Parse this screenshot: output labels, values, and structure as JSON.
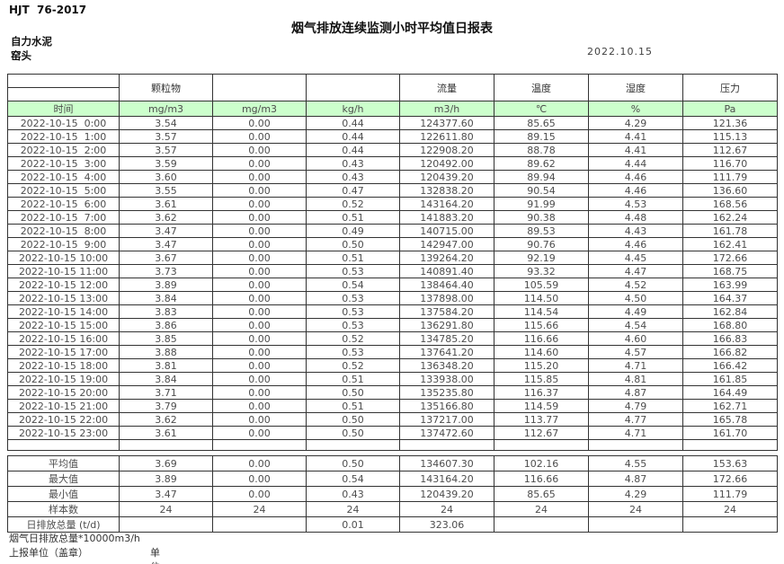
{
  "page": {
    "standard_ref": "HJT  76-2017",
    "title": "烟气排放连续监测小时平均值日报表",
    "company": "自力水泥",
    "station": "窑头",
    "date": "2022.10.15"
  },
  "colors": {
    "units_row_green": "#ccffcc",
    "border": "#333333",
    "data_text": "#4d4d4d"
  },
  "table": {
    "group_headers": [
      "",
      "颗粒物",
      "",
      "",
      "流量",
      "温度",
      "湿度",
      "压力"
    ],
    "unit_headers": [
      "时间",
      "mg/m3",
      "mg/m3",
      "kg/h",
      "m3/h",
      "℃",
      "%",
      "Pa"
    ],
    "rows": [
      [
        "2022-10-15  0:00",
        "3.54",
        "0.00",
        "0.44",
        "124377.60",
        "85.65",
        "4.29",
        "121.36"
      ],
      [
        "2022-10-15  1:00",
        "3.57",
        "0.00",
        "0.44",
        "122611.80",
        "89.15",
        "4.41",
        "115.13"
      ],
      [
        "2022-10-15  2:00",
        "3.57",
        "0.00",
        "0.44",
        "122908.20",
        "88.78",
        "4.41",
        "112.67"
      ],
      [
        "2022-10-15  3:00",
        "3.59",
        "0.00",
        "0.43",
        "120492.00",
        "89.62",
        "4.44",
        "116.70"
      ],
      [
        "2022-10-15  4:00",
        "3.60",
        "0.00",
        "0.43",
        "120439.20",
        "89.94",
        "4.46",
        "111.79"
      ],
      [
        "2022-10-15  5:00",
        "3.55",
        "0.00",
        "0.47",
        "132838.20",
        "90.54",
        "4.46",
        "136.60"
      ],
      [
        "2022-10-15  6:00",
        "3.61",
        "0.00",
        "0.52",
        "143164.20",
        "91.99",
        "4.53",
        "168.56"
      ],
      [
        "2022-10-15  7:00",
        "3.62",
        "0.00",
        "0.51",
        "141883.20",
        "90.38",
        "4.48",
        "162.24"
      ],
      [
        "2022-10-15  8:00",
        "3.47",
        "0.00",
        "0.49",
        "140715.00",
        "89.53",
        "4.43",
        "161.78"
      ],
      [
        "2022-10-15  9:00",
        "3.47",
        "0.00",
        "0.50",
        "142947.00",
        "90.76",
        "4.46",
        "162.41"
      ],
      [
        "2022-10-15 10:00",
        "3.67",
        "0.00",
        "0.51",
        "139264.20",
        "92.19",
        "4.45",
        "172.66"
      ],
      [
        "2022-10-15 11:00",
        "3.73",
        "0.00",
        "0.53",
        "140891.40",
        "93.32",
        "4.47",
        "168.75"
      ],
      [
        "2022-10-15 12:00",
        "3.89",
        "0.00",
        "0.54",
        "138464.40",
        "105.59",
        "4.52",
        "163.99"
      ],
      [
        "2022-10-15 13:00",
        "3.84",
        "0.00",
        "0.53",
        "137898.00",
        "114.50",
        "4.50",
        "164.37"
      ],
      [
        "2022-10-15 14:00",
        "3.83",
        "0.00",
        "0.53",
        "137584.20",
        "114.54",
        "4.49",
        "162.84"
      ],
      [
        "2022-10-15 15:00",
        "3.86",
        "0.00",
        "0.53",
        "136291.80",
        "115.66",
        "4.54",
        "168.80"
      ],
      [
        "2022-10-15 16:00",
        "3.85",
        "0.00",
        "0.52",
        "134785.20",
        "116.66",
        "4.60",
        "166.83"
      ],
      [
        "2022-10-15 17:00",
        "3.88",
        "0.00",
        "0.53",
        "137641.20",
        "114.60",
        "4.57",
        "166.82"
      ],
      [
        "2022-10-15 18:00",
        "3.81",
        "0.00",
        "0.52",
        "136348.20",
        "115.20",
        "4.71",
        "166.42"
      ],
      [
        "2022-10-15 19:00",
        "3.84",
        "0.00",
        "0.51",
        "133938.00",
        "115.85",
        "4.81",
        "161.85"
      ],
      [
        "2022-10-15 20:00",
        "3.71",
        "0.00",
        "0.50",
        "135235.80",
        "116.37",
        "4.87",
        "164.49"
      ],
      [
        "2022-10-15 21:00",
        "3.79",
        "0.00",
        "0.51",
        "135166.80",
        "114.59",
        "4.79",
        "162.71"
      ],
      [
        "2022-10-15 22:00",
        "3.62",
        "0.00",
        "0.50",
        "137217.00",
        "113.77",
        "4.77",
        "165.78"
      ],
      [
        "2022-10-15 23:00",
        "3.61",
        "0.00",
        "0.50",
        "137472.60",
        "112.67",
        "4.71",
        "161.70"
      ]
    ],
    "summary_rows": [
      [
        "平均值",
        "3.69",
        "0.00",
        "0.50",
        "134607.30",
        "102.16",
        "4.55",
        "153.63"
      ],
      [
        "最大值",
        "3.89",
        "0.00",
        "0.54",
        "143164.20",
        "116.66",
        "4.87",
        "172.66"
      ],
      [
        "最小值",
        "3.47",
        "0.00",
        "0.43",
        "120439.20",
        "85.65",
        "4.29",
        "111.79"
      ],
      [
        "样本数",
        "24",
        "24",
        "24",
        "24",
        "24",
        "24",
        "24"
      ],
      [
        "日排放总量 (t/d)",
        "",
        "",
        "0.01",
        "323.06",
        "",
        "",
        ""
      ]
    ]
  },
  "footer": {
    "note": "烟气日排放总量*10000m3/h",
    "report_unit_label": "上报单位（盖章）",
    "unit_label": "单位"
  }
}
